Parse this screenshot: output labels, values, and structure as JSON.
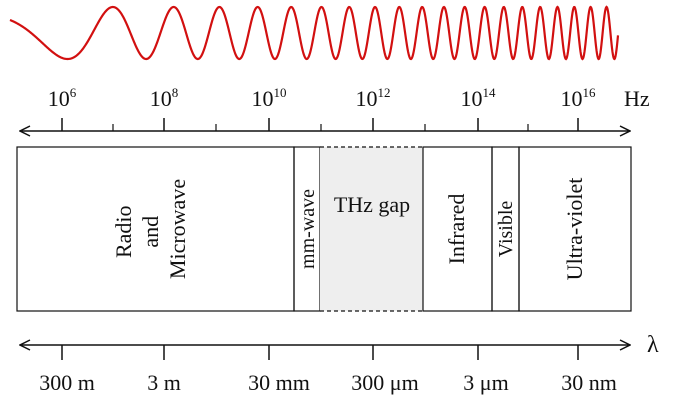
{
  "colors": {
    "wave": "#d21010",
    "line": "#111111",
    "thz_fill": "#eeeeee",
    "text": "#111111"
  },
  "frequency_axis": {
    "unit": "Hz",
    "ticks": [
      {
        "base": "10",
        "exp": "6"
      },
      {
        "base": "10",
        "exp": "8"
      },
      {
        "base": "10",
        "exp": "10"
      },
      {
        "base": "10",
        "exp": "12"
      },
      {
        "base": "10",
        "exp": "14"
      },
      {
        "base": "10",
        "exp": "16"
      }
    ]
  },
  "wavelength_axis": {
    "unit": "λ",
    "ticks": [
      "300 m",
      "3 m",
      "30 mm",
      "300 μm",
      "3 μm",
      "30 nm"
    ]
  },
  "bands": [
    {
      "lines": [
        "Radio",
        "and",
        "Microwave"
      ],
      "style": "solid"
    },
    {
      "lines": [
        "mm-wave"
      ],
      "style": "solid"
    },
    {
      "lines": [
        "THz gap"
      ],
      "style": "dashed",
      "horizontal": true
    },
    {
      "lines": [
        "Infrared"
      ],
      "style": "solid"
    },
    {
      "lines": [
        "Visible"
      ],
      "style": "solid"
    },
    {
      "lines": [
        "Ultra-violet"
      ],
      "style": "solid"
    }
  ]
}
